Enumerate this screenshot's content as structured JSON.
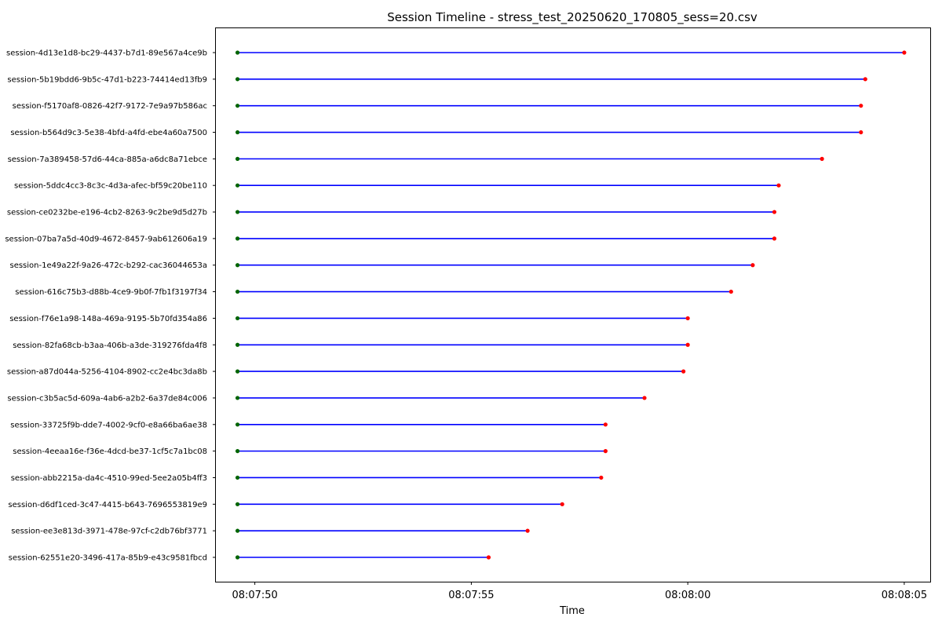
{
  "chart_data": {
    "type": "timeline",
    "title": "Session Timeline - stress_test_20250620_170805_sess=20.csv",
    "xlabel": "Time",
    "ylabel": "",
    "x_ticks": [
      "08:07:50",
      "08:07:55",
      "08:08:00",
      "08:08:05"
    ],
    "x_range": [
      "08:07:49.1",
      "08:08:05.6"
    ],
    "grid": false,
    "colors": {
      "line": "#0000ff",
      "start": "#006400",
      "end": "#ff0000"
    },
    "sessions": [
      {
        "name": "session-4d13e1d8-bc29-4437-b7d1-89e567a4ce9b",
        "start": "08:07:49.6",
        "end": "08:08:05.0"
      },
      {
        "name": "session-5b19bdd6-9b5c-47d1-b223-74414ed13fb9",
        "start": "08:07:49.6",
        "end": "08:08:04.1"
      },
      {
        "name": "session-f5170af8-0826-42f7-9172-7e9a97b586ac",
        "start": "08:07:49.6",
        "end": "08:08:04.0"
      },
      {
        "name": "session-b564d9c3-5e38-4bfd-a4fd-ebe4a60a7500",
        "start": "08:07:49.6",
        "end": "08:08:04.0"
      },
      {
        "name": "session-7a389458-57d6-44ca-885a-a6dc8a71ebce",
        "start": "08:07:49.6",
        "end": "08:08:03.1"
      },
      {
        "name": "session-5ddc4cc3-8c3c-4d3a-afec-bf59c20be110",
        "start": "08:07:49.6",
        "end": "08:08:02.1"
      },
      {
        "name": "session-ce0232be-e196-4cb2-8263-9c2be9d5d27b",
        "start": "08:07:49.6",
        "end": "08:08:02.0"
      },
      {
        "name": "session-07ba7a5d-40d9-4672-8457-9ab612606a19",
        "start": "08:07:49.6",
        "end": "08:08:02.0"
      },
      {
        "name": "session-1e49a22f-9a26-472c-b292-cac36044653a",
        "start": "08:07:49.6",
        "end": "08:08:01.5"
      },
      {
        "name": "session-616c75b3-d88b-4ce9-9b0f-7fb1f3197f34",
        "start": "08:07:49.6",
        "end": "08:08:01.0"
      },
      {
        "name": "session-f76e1a98-148a-469a-9195-5b70fd354a86",
        "start": "08:07:49.6",
        "end": "08:08:00.0"
      },
      {
        "name": "session-82fa68cb-b3aa-406b-a3de-319276fda4f8",
        "start": "08:07:49.6",
        "end": "08:08:00.0"
      },
      {
        "name": "session-a87d044a-5256-4104-8902-cc2e4bc3da8b",
        "start": "08:07:49.6",
        "end": "08:07:59.9"
      },
      {
        "name": "session-c3b5ac5d-609a-4ab6-a2b2-6a37de84c006",
        "start": "08:07:49.6",
        "end": "08:07:59.0"
      },
      {
        "name": "session-33725f9b-dde7-4002-9cf0-e8a66ba6ae38",
        "start": "08:07:49.6",
        "end": "08:07:58.1"
      },
      {
        "name": "session-4eeaa16e-f36e-4dcd-be37-1cf5c7a1bc08",
        "start": "08:07:49.6",
        "end": "08:07:58.1"
      },
      {
        "name": "session-abb2215a-da4c-4510-99ed-5ee2a05b4ff3",
        "start": "08:07:49.6",
        "end": "08:07:58.0"
      },
      {
        "name": "session-d6df1ced-3c47-4415-b643-7696553819e9",
        "start": "08:07:49.6",
        "end": "08:07:57.1"
      },
      {
        "name": "session-ee3e813d-3971-478e-97cf-c2db76bf3771",
        "start": "08:07:49.6",
        "end": "08:07:56.3"
      },
      {
        "name": "session-62551e20-3496-417a-85b9-e43c9581fbcd",
        "start": "08:07:49.6",
        "end": "08:07:55.4"
      }
    ]
  }
}
